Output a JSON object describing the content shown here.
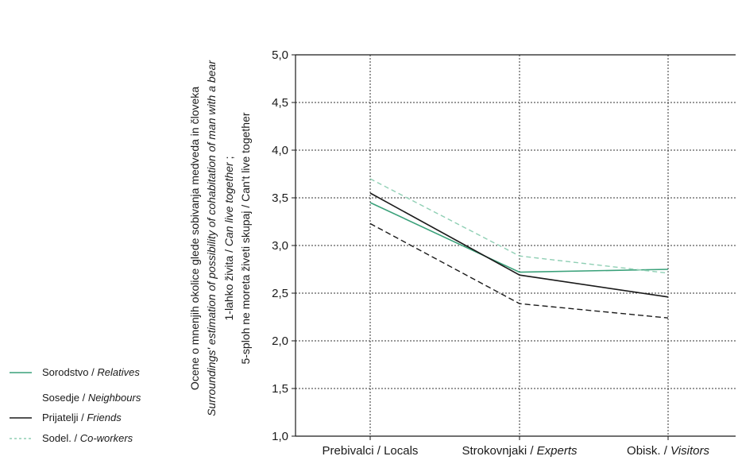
{
  "chart_data": {
    "type": "line",
    "categories": [
      "Prebivalci / Locals",
      "Strokovnjaki / Experts",
      "Obisk. / Visitors"
    ],
    "category_parts": [
      {
        "plain": "Prebivalci / Locals",
        "italic": ""
      },
      {
        "plain": "Strokovnjaki / ",
        "italic": "Experts"
      },
      {
        "plain": "Obisk. / ",
        "italic": "Visitors"
      }
    ],
    "ylim": [
      1.0,
      5.0
    ],
    "y_ticks": [
      "1,0",
      "1,5",
      "2,0",
      "2,5",
      "3,0",
      "3,5",
      "4,0",
      "4,5",
      "5,0"
    ],
    "ylabel_lines": [
      {
        "plain": "Ocene o mnenjih okolice glede sobivanja medveda in človeka",
        "italic": ""
      },
      {
        "plain": "",
        "italic": "Surroundings' estimation of possibility of cohabitation of man with a bear"
      },
      {
        "plain": "1-lahko živita / ",
        "italic": "Can live together",
        "suffix": " ;"
      },
      {
        "plain": "5-sploh ne moreta živeti skupaj / Can't live together",
        "italic": ""
      }
    ],
    "grid": true,
    "legend_position": "bottom-left",
    "series": [
      {
        "name": "Sorodstvo / Relatives",
        "name_plain": "Sorodstvo / ",
        "name_italic": "Relatives",
        "values": [
          3.45,
          2.72,
          2.75
        ],
        "color": "#3aa17a",
        "dash": "",
        "width": 1.6
      },
      {
        "name": "Sosedje / Neighbours",
        "name_plain": "Sosedje / ",
        "name_italic": "Neighbours",
        "values": [
          3.23,
          2.39,
          2.24
        ],
        "color": "#1a1a1a",
        "dash": "7 4",
        "width": 1.4
      },
      {
        "name": "Prijatelji / Friends",
        "name_plain": "Prijatelji / ",
        "name_italic": "Friends",
        "values": [
          3.55,
          2.69,
          2.46
        ],
        "color": "#1a1a1a",
        "dash": "",
        "width": 1.6
      },
      {
        "name": "Sodel. / Co-workers",
        "name_plain": "Sodel. / ",
        "name_italic": "Co-workers",
        "values": [
          3.7,
          2.89,
          2.71
        ],
        "color": "#8fcfb4",
        "dash": "6 4",
        "width": 1.4
      }
    ]
  }
}
